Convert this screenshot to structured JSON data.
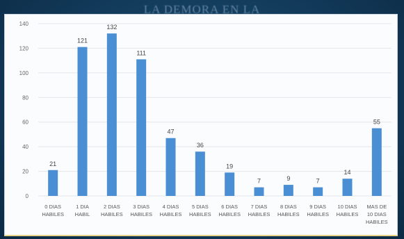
{
  "slide": {
    "title": "LA DEMORA EN LA"
  },
  "chart_data": {
    "type": "bar",
    "title": "",
    "xlabel": "",
    "ylabel": "",
    "ylim": [
      0,
      140
    ],
    "yticks": [
      0,
      20,
      40,
      60,
      80,
      100,
      120,
      140
    ],
    "grid": true,
    "legend": "none",
    "bar_color": "#4a8fd4",
    "categories": [
      [
        "0 DIAS",
        "HABILES"
      ],
      [
        "1 DIA",
        "HABIL"
      ],
      [
        "2 DIAS",
        "HABILES"
      ],
      [
        "3 DIAS",
        "HABILES"
      ],
      [
        "4 DIAS",
        "HABILES"
      ],
      [
        "5 DIAS",
        "HABILES"
      ],
      [
        "6 DIAS",
        "HABILES"
      ],
      [
        "7 DIAS",
        "HABILES"
      ],
      [
        "8 DIAS",
        "HABILES"
      ],
      [
        "9 DIAS",
        "HABILES"
      ],
      [
        "10 DIAS",
        "HABILES"
      ],
      [
        "MAS DE",
        "10 DIAS",
        "HABILES"
      ]
    ],
    "values": [
      21,
      121,
      132,
      111,
      47,
      36,
      19,
      7,
      9,
      7,
      14,
      55
    ]
  }
}
